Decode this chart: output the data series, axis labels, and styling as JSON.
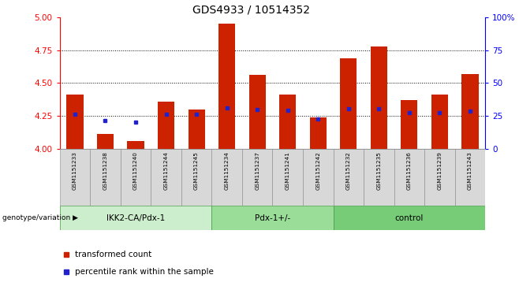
{
  "title": "GDS4933 / 10514352",
  "samples": [
    "GSM1151233",
    "GSM1151238",
    "GSM1151240",
    "GSM1151244",
    "GSM1151245",
    "GSM1151234",
    "GSM1151237",
    "GSM1151241",
    "GSM1151242",
    "GSM1151232",
    "GSM1151235",
    "GSM1151236",
    "GSM1151239",
    "GSM1151243"
  ],
  "bar_tops": [
    4.41,
    4.11,
    4.06,
    4.36,
    4.3,
    4.95,
    4.56,
    4.41,
    4.24,
    4.69,
    4.78,
    4.37,
    4.41,
    4.57
  ],
  "percentile_vals": [
    4.265,
    4.215,
    4.205,
    4.265,
    4.265,
    4.31,
    4.3,
    4.295,
    4.225,
    4.305,
    4.305,
    4.275,
    4.275,
    4.285
  ],
  "bar_baseline": 4.0,
  "ymin": 4.0,
  "ymax": 5.0,
  "yticks_left": [
    4.0,
    4.25,
    4.5,
    4.75,
    5.0
  ],
  "yticks_right_vals": [
    0,
    25,
    50,
    75,
    100
  ],
  "yticks_right_labels": [
    "0",
    "25",
    "50",
    "75",
    "100%"
  ],
  "hlines": [
    4.25,
    4.5,
    4.75
  ],
  "groups": [
    {
      "label": "IKK2-CA/Pdx-1",
      "start": 0,
      "end": 5
    },
    {
      "label": "Pdx-1+/-",
      "start": 5,
      "end": 9
    },
    {
      "label": "control",
      "start": 9,
      "end": 14
    }
  ],
  "group_colors": [
    "#cceecc",
    "#99dd99",
    "#77cc77"
  ],
  "bar_color": "#cc2200",
  "blue_color": "#2222cc",
  "label_bg_color": "#d8d8d8",
  "bar_width": 0.55,
  "genotype_label": "genotype/variation",
  "legend_bar_label": "transformed count",
  "legend_dot_label": "percentile rank within the sample"
}
